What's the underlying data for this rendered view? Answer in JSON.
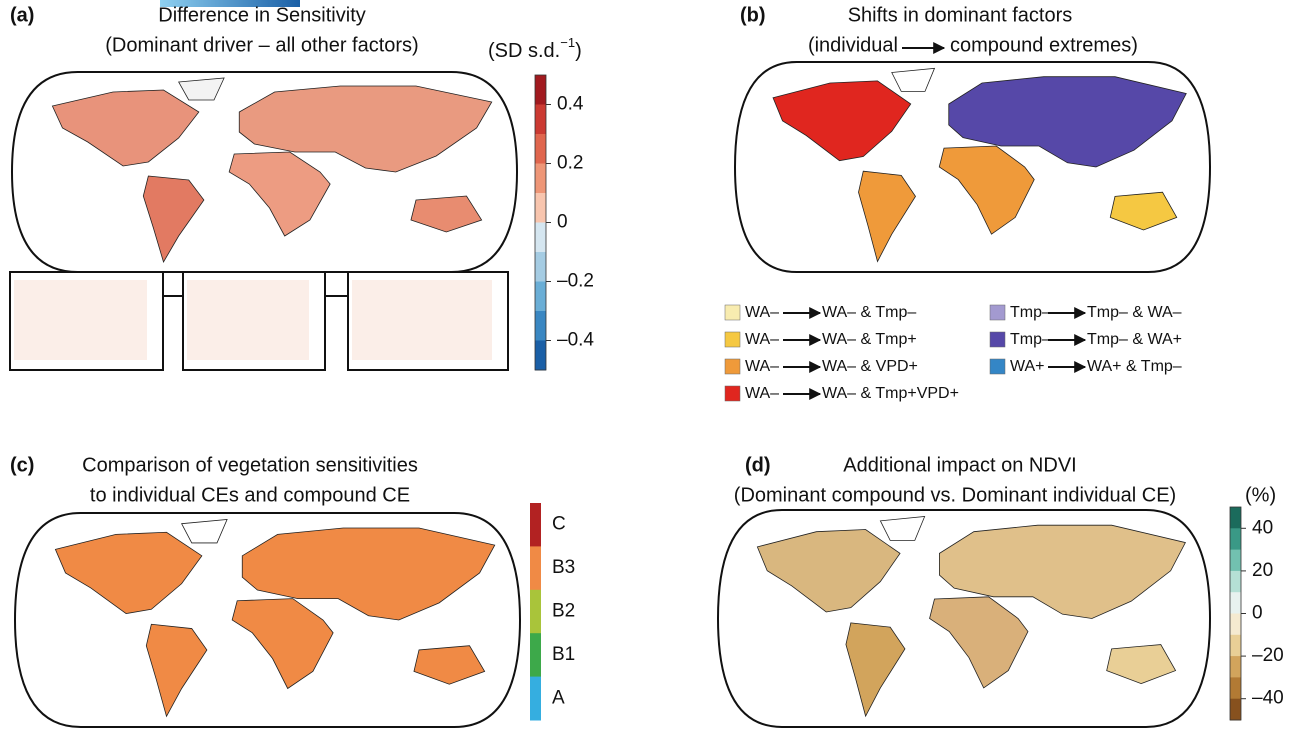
{
  "panel_a": {
    "label": "(a)",
    "title": [
      "Difference in Sensitivity",
      "(Dominant driver – all other factors)"
    ],
    "unit": "(SD s.d.",
    "unit_sup": "−1",
    "unit_end": ")",
    "colorbar": {
      "lim": [
        -0.5,
        0.5
      ],
      "ticks": [
        0.4,
        0.2,
        0,
        {
          "value": -0.2,
          "label": "–0.2"
        },
        {
          "value": -0.4,
          "label": "–0.4"
        }
      ],
      "colors": [
        "#a11a1f",
        "#cb3a32",
        "#e0664e",
        "#ee9677",
        "#f8c5ae",
        "#d5e6f0",
        "#a5cce3",
        "#6aaed6",
        "#3a87c2",
        "#1a5fa6"
      ]
    }
  },
  "panel_b": {
    "label": "(b)",
    "title": [
      "Shifts in dominant factors"
    ],
    "subtitle_from": "(individual",
    "subtitle_to": "compound extremes)",
    "legend": [
      {
        "from": "WA–",
        "to": "WA– & Tmp–",
        "color": "#f8ecb0"
      },
      {
        "from": "WA–",
        "to": "WA– & Tmp+",
        "color": "#f5c842"
      },
      {
        "from": "WA–",
        "to": "WA– & VPD+",
        "color": "#ef9a3a"
      },
      {
        "from": "WA–",
        "to": "WA– & Tmp+VPD+",
        "color": "#e0261f"
      },
      {
        "from": "Tmp–",
        "to": "Tmp– & WA–",
        "color": "#a39ad0"
      },
      {
        "from": "Tmp–",
        "to": "Tmp– & WA+",
        "color": "#5648a8"
      },
      {
        "from": "WA+",
        "to": "WA+ & Tmp–",
        "color": "#3486c6"
      }
    ]
  },
  "panel_c": {
    "label": "(c)",
    "title": [
      "Comparison of vegetation sensitivities",
      "to individual CEs and compound CE"
    ],
    "categories": [
      "C",
      "B3",
      "B2",
      "B1",
      "A"
    ],
    "colors": [
      "#b22222",
      "#f08a45",
      "#a9c43a",
      "#3da94a",
      "#35aee0"
    ]
  },
  "panel_d": {
    "label": "(d)",
    "title": [
      "Additional impact on NDVI",
      "(Dominant compound vs. Dominant individual CE)"
    ],
    "unit": "(%)",
    "colorbar": {
      "lim": [
        -50,
        50
      ],
      "ticks": [
        40,
        20,
        0,
        {
          "value": -20,
          "label": "–20"
        },
        {
          "value": -40,
          "label": "–40"
        }
      ],
      "colors": [
        "#1b6b5c",
        "#3a9986",
        "#72c1b0",
        "#b5e0d5",
        "#e8f2ef",
        "#f5ead0",
        "#e9cf96",
        "#d2a45c",
        "#b27a34",
        "#87511e"
      ]
    }
  }
}
